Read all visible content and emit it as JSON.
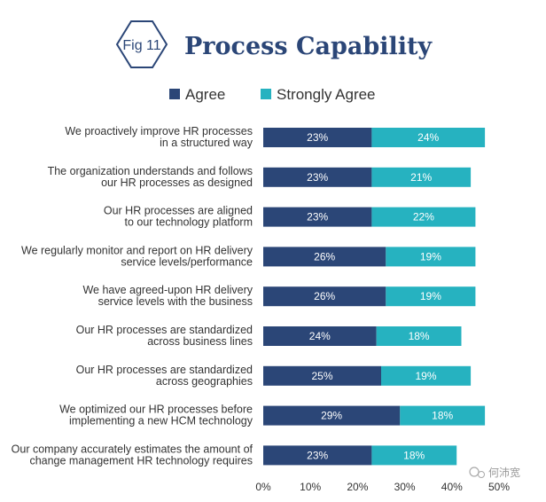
{
  "header": {
    "badge": "Fig 11",
    "title": "Process Capability"
  },
  "watermark": {
    "text": "何沛宽"
  },
  "colors": {
    "agree": "#2b4677",
    "strongly_agree": "#26b2c0",
    "title": "#2b4677",
    "text": "#333333"
  },
  "chart_data": {
    "type": "bar",
    "orientation": "horizontal",
    "stacked": true,
    "title": "Process Capability",
    "legend": {
      "placement": "top-center",
      "entries": [
        "Agree",
        "Strongly Agree"
      ]
    },
    "categories": [
      [
        "We proactively improve HR processes",
        "in a structured way"
      ],
      [
        "The organization understands and follows",
        "our HR processes as designed"
      ],
      [
        "Our HR processes are aligned",
        "to our technology platform"
      ],
      [
        "We regularly monitor and report on HR delivery",
        "service levels/performance"
      ],
      [
        "We have agreed-upon HR delivery",
        "service levels with the business"
      ],
      [
        "Our HR processes are standardized",
        "across business lines"
      ],
      [
        "Our HR processes are standardized",
        "across geographies"
      ],
      [
        "We optimized our HR processes before",
        "implementing a new HCM technology"
      ],
      [
        "Our company accurately estimates the amount of",
        "change management HR technology requires"
      ]
    ],
    "series": [
      {
        "name": "Agree",
        "values": [
          23,
          23,
          23,
          26,
          26,
          24,
          25,
          29,
          23
        ],
        "labels": [
          "23%",
          "23%",
          "23%",
          "26%",
          "26%",
          "24%",
          "25%",
          "29%",
          "23%"
        ],
        "color": "#2b4677"
      },
      {
        "name": "Strongly Agree",
        "values": [
          24,
          21,
          22,
          19,
          19,
          18,
          19,
          18,
          18
        ],
        "labels": [
          "24%",
          "21%",
          "22%",
          "19%",
          "19%",
          "18%",
          "19%",
          "18%",
          "18%"
        ],
        "color": "#26b2c0"
      }
    ],
    "x_ticks": [
      "0%",
      "10%",
      "20%",
      "30%",
      "40%",
      "50%"
    ],
    "xlim": [
      0,
      50
    ],
    "xlabel": "",
    "ylabel": "",
    "grid": false
  }
}
